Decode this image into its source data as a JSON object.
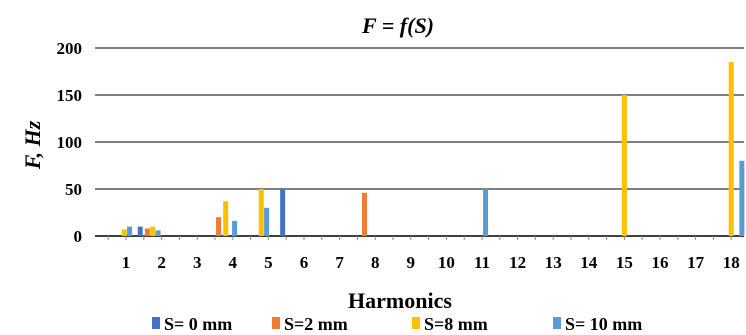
{
  "chart_data": {
    "type": "bar",
    "title": "F = f(S)",
    "xlabel": "Harmonics",
    "ylabel": "F, Hz",
    "ylim": [
      0,
      200
    ],
    "yticks": [
      "0",
      "50",
      "100",
      "150",
      "200"
    ],
    "categories": [
      "1",
      "2",
      "3",
      "4",
      "5",
      "6",
      "7",
      "8",
      "9",
      "10",
      "11",
      "12",
      "13",
      "14",
      "15",
      "16",
      "17",
      "18"
    ],
    "grid": "horizontal",
    "legend_position": "bottom",
    "series": [
      {
        "name": "S= 0 mm",
        "color": "#4472C4",
        "points": [
          {
            "x": 1.4,
            "y": 10
          },
          {
            "x": 5.4,
            "y": 50
          }
        ]
      },
      {
        "name": "S=2 mm",
        "color": "#ED7D31",
        "points": [
          {
            "x": 1.6,
            "y": 8
          },
          {
            "x": 3.6,
            "y": 20
          },
          {
            "x": 7.7,
            "y": 46
          }
        ]
      },
      {
        "name": "S=8 mm",
        "color": "#FFC000",
        "points": [
          {
            "x": 0.95,
            "y": 7
          },
          {
            "x": 1.75,
            "y": 10
          },
          {
            "x": 3.8,
            "y": 37
          },
          {
            "x": 4.8,
            "y": 50
          },
          {
            "x": 15.0,
            "y": 150
          },
          {
            "x": 18.0,
            "y": 185
          }
        ]
      },
      {
        "name": "S= 10 mm",
        "color": "#5B9BD5",
        "points": [
          {
            "x": 1.1,
            "y": 10
          },
          {
            "x": 1.9,
            "y": 6
          },
          {
            "x": 4.05,
            "y": 16
          },
          {
            "x": 4.95,
            "y": 30
          },
          {
            "x": 11.1,
            "y": 50
          },
          {
            "x": 18.3,
            "y": 80
          }
        ]
      }
    ]
  }
}
